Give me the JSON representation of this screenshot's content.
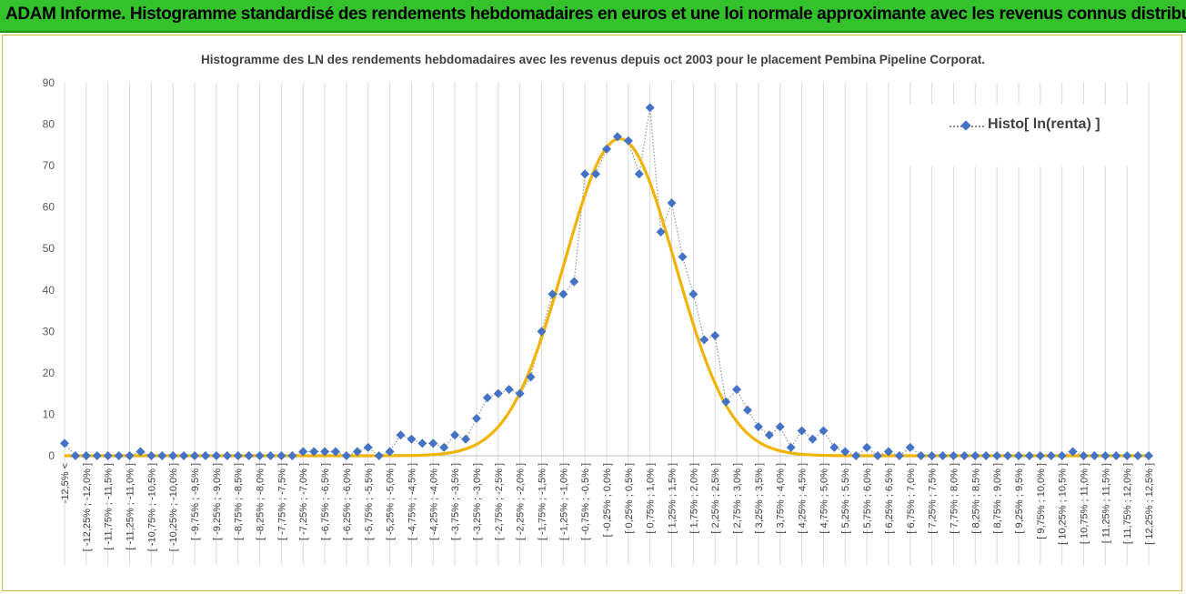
{
  "header": {
    "title": "ADAM Informe. Histogramme standardisé des rendements hebdomadaires en euros et une loi normale approximante avec les revenus connus distribués"
  },
  "chart_data": {
    "type": "line",
    "title": "Histogramme des LN des rendements hebdomadaires avec les revenus depuis oct 2003 pour le placement Pembina Pipeline Corporat.",
    "xlabel": "",
    "ylabel": "",
    "ylim": [
      0,
      90
    ],
    "yticks": [
      0,
      10,
      20,
      30,
      40,
      50,
      60,
      70,
      80,
      90
    ],
    "grid": "vertical gridlines",
    "legend_position": "top-right",
    "categories": [
      "-12,5% <",
      "[ -12,25% ; -12,0% ]",
      "[ -11,75% ; -11,5% ]",
      "[ -11,25% ; -11,0% ]",
      "[ -10,75% ; -10,5% ]",
      "[ -10,25% ; -10,0% ]",
      "[ -9,75% ; -9,5% ]",
      "[ -9,25% ; -9,0% ]",
      "[ -8,75% ; -8,5% ]",
      "[ -8,25% ; -8,0% ]",
      "[ -7,75% ; -7,5% ]",
      "[ -7,25% ; -7,0% ]",
      "[ -6,75% ; -6,5% ]",
      "[ -6,25% ; -6,0% ]",
      "[ -5,75% ; -5,5% ]",
      "[ -5,25% ; -5,0% ]",
      "[ -4,75% ; -4,5% ]",
      "[ -4,25% ; -4,0% ]",
      "[ -3,75% ; -3,5% ]",
      "[ -3,25% ; -3,0% ]",
      "[ -2,75% ; -2,5% ]",
      "[ -2,25% ; -2,0% ]",
      "[ -1,75% ; -1,5% ]",
      "[ -1,25% ; -1,0% ]",
      "[ -0,75% ; -0,5% ]",
      "[ -0,25% ; 0,0% ]",
      "[ 0,25% ; 0,5% ]",
      "[ 0,75% ; 1,0% ]",
      "[ 1,25% ; 1,5% ]",
      "[ 1,75% ; 2,0% ]",
      "[ 2,25% ; 2,5% ]",
      "[ 2,75% ; 3,0% ]",
      "[ 3,25% ; 3,5% ]",
      "[ 3,75% ; 4,0% ]",
      "[ 4,25% ; 4,5% ]",
      "[ 4,75% ; 5,0% ]",
      "[ 5,25% ; 5,5% ]",
      "[ 5,75% ; 6,0% ]",
      "[ 6,25% ; 6,5% ]",
      "[ 6,75% ; 7,0% ]",
      "[ 7,25% ; 7,5% ]",
      "[ 7,75% ; 8,0% ]",
      "[ 8,25% ; 8,5% ]",
      "[ 8,75% ; 9,0% ]",
      "[ 9,25% ; 9,5% ]",
      "[ 9,75% ; 10,0% ]",
      "[ 10,25% ; 10,5% ]",
      "[ 10,75% ; 11,0% ]",
      "[ 11,25% ; 11,5% ]",
      "[ 11,75% ; 12,0% ]",
      "[ 12,25% ; 12,5% ]"
    ],
    "x": [
      -12.5,
      -12.25,
      -12.0,
      -11.75,
      -11.5,
      -11.25,
      -11.0,
      -10.75,
      -10.5,
      -10.25,
      -10.0,
      -9.75,
      -9.5,
      -9.25,
      -9.0,
      -8.75,
      -8.5,
      -8.25,
      -8.0,
      -7.75,
      -7.5,
      -7.25,
      -7.0,
      -6.75,
      -6.5,
      -6.25,
      -6.0,
      -5.75,
      -5.5,
      -5.25,
      -5.0,
      -4.75,
      -4.5,
      -4.25,
      -4.0,
      -3.75,
      -3.5,
      -3.25,
      -3.0,
      -2.75,
      -2.5,
      -2.25,
      -2.0,
      -1.75,
      -1.5,
      -1.25,
      -1.0,
      -0.75,
      -0.5,
      -0.25,
      0.0,
      0.25,
      0.5,
      0.75,
      1.0,
      1.25,
      1.5,
      1.75,
      2.0,
      2.25,
      2.5,
      2.75,
      3.0,
      3.25,
      3.5,
      3.75,
      4.0,
      4.25,
      4.5,
      4.75,
      5.0,
      5.25,
      5.5,
      5.75,
      6.0,
      6.25,
      6.5,
      6.75,
      7.0,
      7.25,
      7.5,
      7.75,
      8.0,
      8.25,
      8.5,
      8.75,
      9.0,
      9.25,
      9.5,
      9.75,
      10.0,
      10.25,
      10.5,
      10.75,
      11.0,
      11.25,
      11.5,
      11.75,
      12.0,
      12.25,
      12.5
    ],
    "series": [
      {
        "name": "Histo[ ln(renta) ]",
        "style": "dotted-line-diamonds",
        "color": "#4472c4",
        "values": [
          3,
          0,
          0,
          0,
          0,
          0,
          0,
          1,
          0,
          0,
          0,
          0,
          0,
          0,
          0,
          0,
          0,
          0,
          0,
          0,
          0,
          0,
          1,
          1,
          1,
          1,
          0,
          1,
          2,
          0,
          1,
          5,
          4,
          3,
          3,
          2,
          5,
          4,
          9,
          14,
          15,
          16,
          15,
          19,
          30,
          39,
          39,
          42,
          68,
          68,
          74,
          77,
          76,
          68,
          84,
          54,
          61,
          48,
          39,
          28,
          29,
          13,
          16,
          11,
          7,
          5,
          7,
          2,
          6,
          4,
          6,
          2,
          1,
          0,
          2,
          0,
          1,
          0,
          2,
          0,
          0,
          0,
          0,
          0,
          0,
          0,
          0,
          0,
          0,
          0,
          0,
          0,
          0,
          1,
          0,
          0,
          0,
          0,
          0,
          0,
          0
        ]
      },
      {
        "style": "smooth-curve",
        "color": "#f0b400",
        "normal_fit": {
          "mean": 0.3,
          "sd": 1.28,
          "peak": 76.5
        }
      }
    ]
  }
}
